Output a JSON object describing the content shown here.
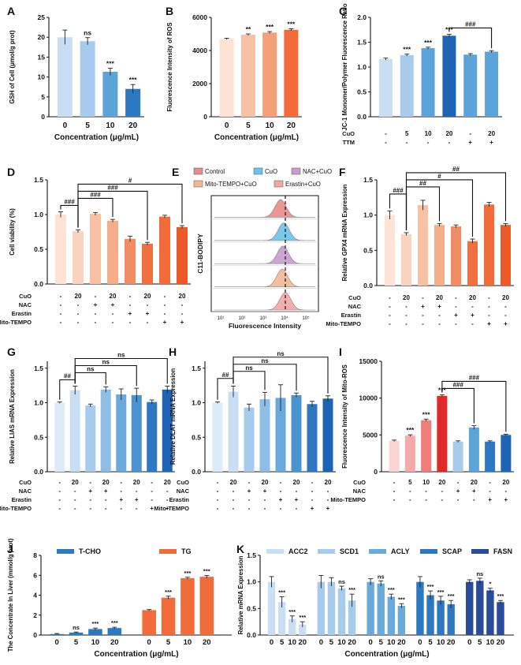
{
  "chart_data": [
    {
      "panel": "A",
      "type": "bar",
      "ylabel": "GSH of Cell (μmol/g prot)",
      "xlabel": "Concentration (μg/mL)",
      "categories": [
        "0",
        "5",
        "10",
        "20"
      ],
      "values": [
        20,
        19,
        11.3,
        7
      ],
      "errors": [
        1.8,
        0.9,
        0.9,
        1.1
      ],
      "sig": [
        "",
        "ns",
        "***",
        "***"
      ],
      "yticks": [
        0,
        5,
        10,
        15,
        20,
        25
      ],
      "ylim": [
        0,
        25
      ],
      "colors": [
        "#c9def3",
        "#a7cbec",
        "#5ba3d8",
        "#2d78c2"
      ]
    },
    {
      "panel": "B",
      "type": "bar",
      "ylabel": "Fluorescence Intensity of ROS",
      "xlabel": "Concentration (μg/mL)",
      "categories": [
        "0",
        "5",
        "10",
        "20"
      ],
      "values": [
        4700,
        4950,
        5080,
        5250
      ],
      "errors": [
        40,
        50,
        60,
        60
      ],
      "sig": [
        "",
        "**",
        "***",
        "***"
      ],
      "yticks": [
        0,
        2000,
        4000,
        6000
      ],
      "ylim": [
        0,
        6000
      ],
      "colors": [
        "#fde3d5",
        "#f8c1a4",
        "#f5a077",
        "#f26b3a"
      ]
    },
    {
      "panel": "C",
      "type": "bar",
      "ylabel": "JC-1 Monomer/Polymer Fluorescence Ratio",
      "rows": [
        {
          "name": "CuO",
          "vals": [
            "-",
            "5",
            "10",
            "20",
            "-",
            "20"
          ]
        },
        {
          "name": "TTM",
          "vals": [
            "-",
            "-",
            "-",
            "-",
            "+",
            "+"
          ]
        }
      ],
      "values": [
        1.16,
        1.24,
        1.38,
        1.63,
        1.25,
        1.31
      ],
      "errors": [
        0.02,
        0.02,
        0.02,
        0.03,
        0.02,
        0.02
      ],
      "sig": [
        "",
        "***",
        "***",
        "***",
        "",
        ""
      ],
      "brackets": [
        {
          "from": 3,
          "to": 5,
          "label": "###"
        }
      ],
      "yticks": [
        0.0,
        0.5,
        1.0,
        1.5,
        2.0
      ],
      "ylim": [
        0,
        2.0
      ],
      "colors": [
        "#c9def3",
        "#a7cbec",
        "#5ba3d8",
        "#1e64b4",
        "#5ba3d8",
        "#5ba3d8"
      ]
    },
    {
      "panel": "D",
      "type": "bar",
      "ylabel": "Cell viability (%)",
      "rows": [
        {
          "name": "CuO",
          "vals": [
            "-",
            "20",
            "-",
            "20",
            "-",
            "20",
            "-",
            "20"
          ]
        },
        {
          "name": "NAC",
          "vals": [
            "-",
            "-",
            "+",
            "+",
            "-",
            "-",
            "-",
            "-"
          ]
        },
        {
          "name": "Erastin",
          "vals": [
            "-",
            "-",
            "-",
            "-",
            "+",
            "+",
            "-",
            "-"
          ]
        },
        {
          "name": "Mito-TEMPO",
          "vals": [
            "-",
            "-",
            "-",
            "-",
            "-",
            "-",
            "+",
            "+"
          ]
        }
      ],
      "values": [
        1.0,
        0.76,
        1.01,
        0.91,
        0.65,
        0.58,
        0.97,
        0.82
      ],
      "errors": [
        0.04,
        0.02,
        0.02,
        0.02,
        0.04,
        0.02,
        0.02,
        0.02
      ],
      "brackets": [
        {
          "from": 0,
          "to": 1,
          "label": "###"
        },
        {
          "from": 1,
          "to": 3,
          "label": "###"
        },
        {
          "from": 1,
          "to": 5,
          "label": "###"
        },
        {
          "from": 1,
          "to": 7,
          "label": "#"
        }
      ],
      "yticks": [
        0.0,
        0.5,
        1.0,
        1.5
      ],
      "ylim": [
        0,
        1.5
      ],
      "colors": [
        "#fde3d5",
        "#f8d3bf",
        "#f8c1a4",
        "#f5ad8a",
        "#f28c62",
        "#f0713f",
        "#f26b3a",
        "#ec5a2a"
      ]
    },
    {
      "panel": "E",
      "type": "histogram-overlay",
      "title": "C11-BODIPY",
      "xlabel": "Fluorescence Intensity",
      "legend": [
        "Control",
        "CuO",
        "NAC+CuO",
        "Mito-TEMPO+CuO",
        "Erastin+CuO"
      ],
      "colors": [
        "#ea8a8a",
        "#6ec3e8",
        "#c89ccf",
        "#f2b894",
        "#f3a6a6"
      ]
    },
    {
      "panel": "F",
      "type": "bar",
      "ylabel": "Relative GPX4 mRNA Expression",
      "rows": [
        {
          "name": "CuO",
          "vals": [
            "-",
            "20",
            "-",
            "20",
            "-",
            "20",
            "-",
            "20"
          ]
        },
        {
          "name": "NAC",
          "vals": [
            "-",
            "-",
            "+",
            "+",
            "-",
            "-",
            "-",
            "-"
          ]
        },
        {
          "name": "Erastin",
          "vals": [
            "-",
            "-",
            "-",
            "-",
            "+",
            "+",
            "-",
            "-"
          ]
        },
        {
          "name": "Mito-TEMPO",
          "vals": [
            "-",
            "-",
            "-",
            "-",
            "-",
            "-",
            "+",
            "+"
          ]
        }
      ],
      "values": [
        1.0,
        0.73,
        1.14,
        0.86,
        0.84,
        0.63,
        1.15,
        0.86
      ],
      "errors": [
        0.06,
        0.02,
        0.07,
        0.02,
        0.02,
        0.03,
        0.03,
        0.02
      ],
      "brackets": [
        {
          "from": 0,
          "to": 1,
          "label": "###"
        },
        {
          "from": 1,
          "to": 3,
          "label": "##"
        },
        {
          "from": 1,
          "to": 5,
          "label": "#"
        },
        {
          "from": 1,
          "to": 7,
          "label": "##"
        }
      ],
      "yticks": [
        0.0,
        0.5,
        1.0,
        1.5
      ],
      "ylim": [
        0,
        1.5
      ],
      "colors": [
        "#fde3d5",
        "#f8d3bf",
        "#f8c1a4",
        "#f5ad8a",
        "#f28c62",
        "#f0713f",
        "#f26b3a",
        "#ec5a2a"
      ]
    },
    {
      "panel": "G",
      "type": "bar",
      "ylabel": "Relative LIAS mRNA Expression",
      "rows": [
        {
          "name": "CuO",
          "vals": [
            "-",
            "20",
            "-",
            "20",
            "-",
            "20",
            "-",
            "20"
          ]
        },
        {
          "name": "NAC",
          "vals": [
            "-",
            "-",
            "+",
            "+",
            "-",
            "-",
            "-",
            "-"
          ]
        },
        {
          "name": "Erastin",
          "vals": [
            "-",
            "-",
            "-",
            "-",
            "+",
            "+",
            "-",
            "-"
          ]
        },
        {
          "name": "Mito-TEMPO",
          "vals": [
            "-",
            "-",
            "-",
            "-",
            "-",
            "-",
            "+",
            "+"
          ]
        }
      ],
      "values": [
        1.0,
        1.18,
        0.96,
        1.19,
        1.12,
        1.11,
        1.01,
        1.19
      ],
      "errors": [
        0.01,
        0.06,
        0.02,
        0.04,
        0.08,
        0.1,
        0.03,
        0.05
      ],
      "brackets": [
        {
          "from": 0,
          "to": 1,
          "label": "##"
        },
        {
          "from": 1,
          "to": 3,
          "label": "ns"
        },
        {
          "from": 1,
          "to": 5,
          "label": "ns"
        },
        {
          "from": 1,
          "to": 7,
          "label": "ns"
        }
      ],
      "yticks": [
        0.0,
        0.5,
        1.0,
        1.5
      ],
      "ylim": [
        0,
        1.6
      ],
      "colors": [
        "#ddebf8",
        "#c9def3",
        "#a7cbec",
        "#8ebde6",
        "#6aa9dc",
        "#4a93cf",
        "#2f77c0",
        "#1e64b4"
      ]
    },
    {
      "panel": "H",
      "type": "bar",
      "ylabel": "Relative DLAT mRNA Expression",
      "rows": [
        {
          "name": "CuO",
          "vals": [
            "-",
            "20",
            "-",
            "20",
            "-",
            "20",
            "-",
            "20"
          ]
        },
        {
          "name": "NAC",
          "vals": [
            "-",
            "-",
            "+",
            "+",
            "-",
            "-",
            "-",
            "-"
          ]
        },
        {
          "name": "Erastin",
          "vals": [
            "-",
            "-",
            "-",
            "-",
            "+",
            "+",
            "-",
            "-"
          ]
        },
        {
          "name": "Mito-TEMPO",
          "vals": [
            "-",
            "-",
            "-",
            "-",
            "-",
            "-",
            "+",
            "+"
          ]
        }
      ],
      "values": [
        1.0,
        1.16,
        0.93,
        1.05,
        1.07,
        1.11,
        0.98,
        1.06
      ],
      "errors": [
        0.01,
        0.08,
        0.05,
        0.1,
        0.19,
        0.03,
        0.04,
        0.04
      ],
      "brackets": [
        {
          "from": 0,
          "to": 1,
          "label": "##"
        },
        {
          "from": 1,
          "to": 3,
          "label": "ns"
        },
        {
          "from": 1,
          "to": 5,
          "label": "ns"
        },
        {
          "from": 1,
          "to": 7,
          "label": "ns"
        }
      ],
      "yticks": [
        0.0,
        0.5,
        1.0,
        1.5
      ],
      "ylim": [
        0,
        1.6
      ],
      "colors": [
        "#ddebf8",
        "#c9def3",
        "#a7cbec",
        "#8ebde6",
        "#6aa9dc",
        "#4a93cf",
        "#2f77c0",
        "#1e64b4"
      ]
    },
    {
      "panel": "I",
      "type": "bar",
      "ylabel": "Fluorescence Intensity of Mito-ROS",
      "rows": [
        {
          "name": "CuO",
          "vals": [
            "-",
            "5",
            "10",
            "20",
            "-",
            "20",
            "-",
            "20"
          ]
        },
        {
          "name": "NAC",
          "vals": [
            "-",
            "-",
            "-",
            "-",
            "+",
            "+",
            "-",
            "-"
          ]
        },
        {
          "name": "Mito-TEMPO",
          "vals": [
            "-",
            "-",
            "-",
            "-",
            "-",
            "-",
            "+",
            "+"
          ]
        }
      ],
      "values": [
        4200,
        4900,
        7000,
        10300,
        4100,
        6000,
        4100,
        5000
      ],
      "errors": [
        100,
        120,
        150,
        150,
        100,
        250,
        100,
        100
      ],
      "sig": [
        "",
        "***",
        "***",
        "***",
        "",
        "",
        "",
        ""
      ],
      "brackets": [
        {
          "from": 3,
          "to": 5,
          "label": "###"
        },
        {
          "from": 3,
          "to": 7,
          "label": "###"
        }
      ],
      "yticks": [
        0,
        5000,
        10000,
        15000
      ],
      "ylim": [
        0,
        15000
      ],
      "colors": [
        "#fbd4d4",
        "#f6a9a9",
        "#f07c7c",
        "#e02a2a",
        "#a7cbec",
        "#5ba3d8",
        "#2d78c2",
        "#1e64b4"
      ]
    },
    {
      "panel": "J",
      "type": "bar",
      "ylabel": "The Concentrate In Liver (mmol/g prot)",
      "xlabel": "Concentration (μg/mL)",
      "categories": [
        "0",
        "5",
        "10",
        "20"
      ],
      "series": [
        {
          "name": "T-CHO",
          "values": [
            0.1,
            0.25,
            0.6,
            0.7
          ],
          "errors": [
            0.05,
            0.05,
            0.1,
            0.08
          ],
          "sig": [
            "",
            "ns",
            "***",
            "***"
          ],
          "color": "#2d78c2"
        },
        {
          "name": "TG",
          "values": [
            2.5,
            3.75,
            5.7,
            5.85
          ],
          "errors": [
            0.06,
            0.15,
            0.1,
            0.12
          ],
          "sig": [
            "",
            "***",
            "***",
            "***"
          ],
          "color": "#f26b3a"
        }
      ],
      "yticks": [
        0,
        2,
        4,
        6,
        8
      ],
      "ylim": [
        0,
        8
      ]
    },
    {
      "panel": "K",
      "type": "bar",
      "ylabel": "Relative mRNA Expression",
      "xlabel": "Concentration (μg/mL)",
      "categories": [
        "0",
        "5",
        "10",
        "20"
      ],
      "series": [
        {
          "name": "ACC2",
          "values": [
            1.0,
            0.62,
            0.3,
            0.2
          ],
          "errors": [
            0.1,
            0.1,
            0.06,
            0.05
          ],
          "sig": [
            "",
            "***",
            "***",
            "***"
          ],
          "color": "#c9def3"
        },
        {
          "name": "SCD1",
          "values": [
            1.0,
            1.0,
            0.88,
            0.65
          ],
          "errors": [
            0.12,
            0.08,
            0.04,
            0.12
          ],
          "sig": [
            "",
            "",
            "ns",
            "***"
          ],
          "color": "#a7cbec"
        },
        {
          "name": "ACLY",
          "values": [
            1.0,
            0.97,
            0.72,
            0.55
          ],
          "errors": [
            0.06,
            0.05,
            0.05,
            0.04
          ],
          "sig": [
            "",
            "ns",
            "***",
            "***"
          ],
          "color": "#6aa9dc"
        },
        {
          "name": "SCAP",
          "values": [
            1.0,
            0.75,
            0.65,
            0.58
          ],
          "errors": [
            0.1,
            0.08,
            0.08,
            0.07
          ],
          "sig": [
            "",
            "***",
            "***",
            "***"
          ],
          "color": "#2d78c2"
        },
        {
          "name": "FASN",
          "values": [
            1.0,
            1.02,
            0.84,
            0.62
          ],
          "errors": [
            0.04,
            0.05,
            0.04,
            0.03
          ],
          "sig": [
            "",
            "ns",
            "*",
            "***"
          ],
          "color": "#2a4a9a"
        }
      ],
      "yticks": [
        0.0,
        0.5,
        1.0,
        1.5
      ],
      "ylim": [
        0,
        1.5
      ]
    }
  ]
}
